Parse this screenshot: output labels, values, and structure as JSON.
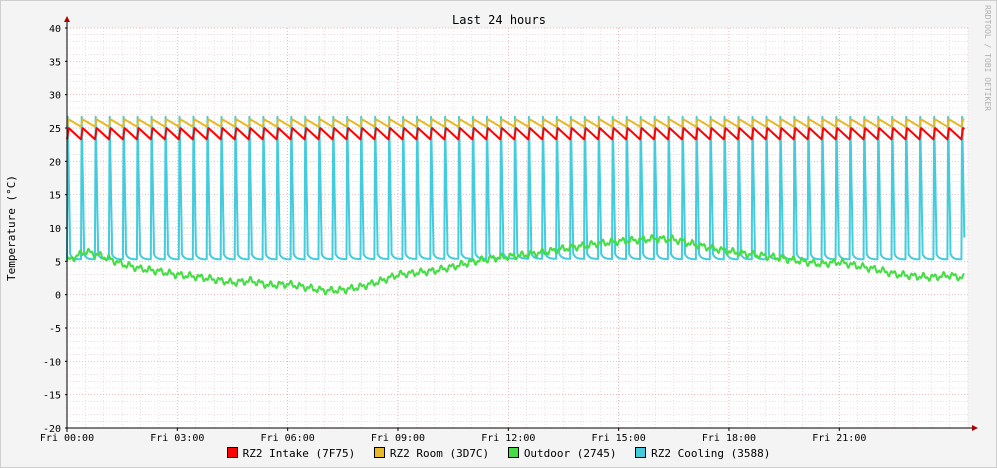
{
  "chart_data": {
    "type": "line",
    "title": "Last 24 hours",
    "ylabel": "Temperature (°C)",
    "xlabel": "",
    "watermark": "RRDTOOL / TOBI OETIKER",
    "ylim": [
      -20,
      40
    ],
    "yticks": [
      -20,
      -15,
      -10,
      -5,
      0,
      5,
      10,
      15,
      20,
      25,
      30,
      35,
      40
    ],
    "xlim_hours": [
      0,
      24.5
    ],
    "xticks": [
      {
        "hour": 0,
        "label": "Fri 00:00"
      },
      {
        "hour": 3,
        "label": "Fri 03:00"
      },
      {
        "hour": 6,
        "label": "Fri 06:00"
      },
      {
        "hour": 9,
        "label": "Fri 09:00"
      },
      {
        "hour": 12,
        "label": "Fri 12:00"
      },
      {
        "hour": 15,
        "label": "Fri 15:00"
      },
      {
        "hour": 18,
        "label": "Fri 18:00"
      },
      {
        "hour": 21,
        "label": "Fri 21:00"
      }
    ],
    "grid": true,
    "legend_position": "bottom",
    "series": [
      {
        "name": "RZ2 Intake (7F75)",
        "color": "#ff0000",
        "pattern": {
          "kind": "sawtooth",
          "cycle_hours": 0.38,
          "high": 25.0,
          "low": 23.3
        },
        "x": [
          0,
          6,
          12,
          18,
          24.4
        ],
        "values": [
          24.2,
          24.2,
          24.1,
          24.2,
          24.2
        ]
      },
      {
        "name": "RZ2 Room (3D7C)",
        "color": "#e6b82a",
        "pattern": {
          "kind": "sawtooth",
          "cycle_hours": 0.38,
          "high": 26.3,
          "low": 25.2
        },
        "x": [
          0,
          6,
          12,
          18,
          24.4
        ],
        "values": [
          25.8,
          25.8,
          25.7,
          25.8,
          25.8
        ]
      },
      {
        "name": "Outdoor (2745)",
        "color": "#44dd44",
        "x": [
          0,
          0.5,
          1.0,
          1.5,
          2.0,
          2.5,
          3.0,
          3.5,
          4.0,
          4.5,
          5.0,
          5.5,
          6.0,
          6.5,
          7.0,
          7.5,
          8.0,
          8.5,
          9.0,
          9.5,
          10.0,
          10.5,
          11.0,
          11.5,
          12.0,
          12.5,
          13.0,
          13.5,
          14.0,
          14.5,
          15.0,
          15.5,
          16.0,
          16.5,
          17.0,
          17.5,
          18.0,
          18.5,
          19.0,
          19.5,
          20.0,
          20.5,
          21.0,
          21.5,
          22.0,
          22.5,
          23.0,
          23.5,
          24.0,
          24.4
        ],
        "values": [
          5.0,
          6.5,
          5.7,
          4.6,
          3.9,
          3.5,
          3.0,
          2.7,
          2.3,
          1.8,
          2.1,
          1.4,
          1.6,
          1.1,
          0.6,
          0.7,
          1.2,
          2.0,
          3.0,
          3.3,
          3.6,
          4.2,
          4.9,
          5.4,
          5.7,
          6.0,
          6.4,
          6.9,
          7.3,
          7.7,
          8.0,
          8.2,
          8.4,
          8.3,
          7.6,
          7.0,
          6.5,
          6.1,
          5.8,
          5.4,
          5.0,
          4.6,
          4.9,
          4.3,
          3.8,
          3.1,
          2.8,
          2.6,
          2.9,
          2.5
        ]
      },
      {
        "name": "RZ2 Cooling (3588)",
        "color": "#44ccdd",
        "pattern": {
          "kind": "spikes",
          "cycle_hours": 0.38,
          "peak": 27.0,
          "base": 5.3
        },
        "x": [
          0,
          6,
          12,
          18,
          24.4
        ],
        "values": [
          5.3,
          5.3,
          5.4,
          5.3,
          5.3
        ]
      }
    ]
  }
}
